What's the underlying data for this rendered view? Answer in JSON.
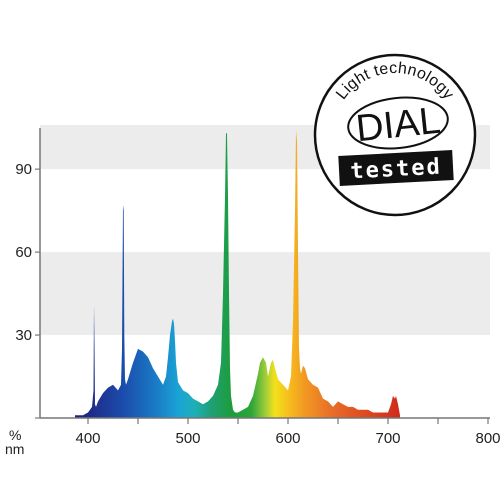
{
  "chart_data": {
    "type": "area",
    "title": "",
    "xlabel": "nm",
    "ylabel": "%",
    "x_axis": {
      "unit": "nm",
      "range": [
        380,
        800
      ],
      "ticks": [
        400,
        500,
        600,
        700,
        800
      ],
      "tick_labels": [
        "400",
        "500",
        "600",
        "700",
        "800"
      ]
    },
    "y_axis": {
      "unit": "%",
      "range": [
        0,
        106
      ],
      "ticks": [
        30,
        60,
        90
      ],
      "tick_labels": [
        "30",
        "60",
        "90"
      ]
    },
    "grid": "alternating light-grey horizontal bands",
    "fill": "visible-spectrum colour gradient under the curve",
    "series": [
      {
        "x": [
          387,
          395,
          400,
          404,
          405.5,
          406,
          406.5,
          407,
          408,
          410,
          415,
          420,
          425,
          430,
          433,
          434,
          435,
          435.7,
          436.3,
          437,
          438,
          440,
          445,
          450,
          455,
          460,
          465,
          470,
          475,
          478,
          480,
          482,
          484,
          485,
          486,
          487,
          488,
          490,
          495,
          500,
          505,
          510,
          515,
          520,
          525,
          530,
          533,
          535,
          537,
          538,
          539,
          540,
          541,
          542,
          543,
          545,
          547,
          550,
          555,
          560,
          565,
          570,
          572,
          575,
          578,
          580,
          583,
          585,
          587,
          590,
          595,
          600,
          603,
          605,
          607,
          608,
          609,
          610,
          611,
          612,
          613,
          615,
          617,
          620,
          625,
          630,
          635,
          640,
          645,
          650,
          655,
          660,
          665,
          670,
          675,
          680,
          685,
          690,
          695,
          700,
          703,
          705,
          707,
          708,
          710,
          712
        ],
        "y": [
          1,
          1,
          2,
          4,
          10,
          41,
          26,
          5,
          4,
          6,
          9,
          11,
          12,
          10,
          12,
          25,
          77,
          75,
          30,
          14,
          12,
          14,
          20,
          25,
          24,
          22,
          18,
          15,
          12,
          15,
          22,
          30,
          35,
          36,
          34,
          28,
          20,
          13,
          10,
          9,
          7,
          6,
          5,
          6,
          8,
          12,
          20,
          45,
          80,
          103,
          103,
          80,
          45,
          18,
          8,
          3,
          2,
          2,
          3,
          4,
          8,
          16,
          20,
          22,
          20,
          15,
          20,
          21,
          18,
          14,
          12,
          10,
          15,
          35,
          75,
          104,
          100,
          60,
          25,
          18,
          16,
          19,
          18,
          14,
          12,
          11,
          7,
          6,
          4,
          6,
          5,
          4,
          4,
          3,
          3,
          3,
          2,
          2,
          2,
          2,
          5,
          8,
          7,
          8,
          5,
          1
        ]
      }
    ]
  },
  "seal": {
    "ring_text": "Light technology",
    "brand": "DIAL",
    "badge": "tested"
  }
}
